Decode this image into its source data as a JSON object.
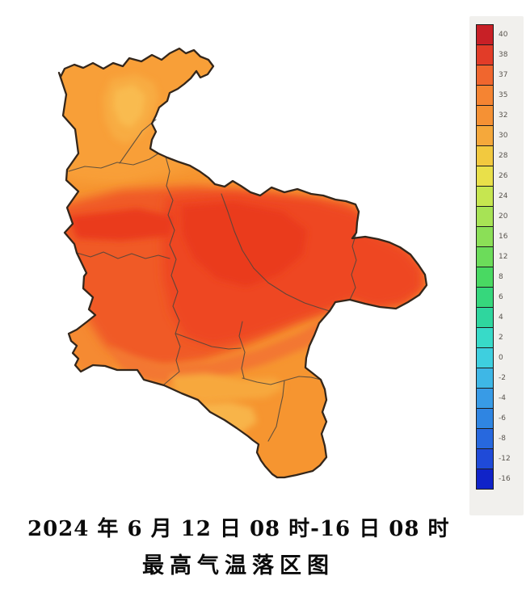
{
  "titles": {
    "period": "2024 年 6 月 12 日 08 时-16 日 08 时",
    "name": "最高气温落区图"
  },
  "legend": {
    "entries": [
      {
        "value": "40",
        "color": "#c82026"
      },
      {
        "value": "38",
        "color": "#e23c28"
      },
      {
        "value": "37",
        "color": "#f0662e"
      },
      {
        "value": "35",
        "color": "#f58432"
      },
      {
        "value": "32",
        "color": "#f59134"
      },
      {
        "value": "30",
        "color": "#f5a83b"
      },
      {
        "value": "28",
        "color": "#f2c93f"
      },
      {
        "value": "26",
        "color": "#e9e04a"
      },
      {
        "value": "24",
        "color": "#c6e650"
      },
      {
        "value": "20",
        "color": "#a7e355"
      },
      {
        "value": "16",
        "color": "#8bdf57"
      },
      {
        "value": "12",
        "color": "#6cdc5a"
      },
      {
        "value": "8",
        "color": "#49d962"
      },
      {
        "value": "6",
        "color": "#36d77c"
      },
      {
        "value": "4",
        "color": "#2fd69e"
      },
      {
        "value": "2",
        "color": "#38dac8"
      },
      {
        "value": "0",
        "color": "#3ecfdf"
      },
      {
        "value": "-2",
        "color": "#3eb7e6"
      },
      {
        "value": "-4",
        "color": "#389be6"
      },
      {
        "value": "-6",
        "color": "#2f85e2"
      },
      {
        "value": "-8",
        "color": "#2768de"
      },
      {
        "value": "-12",
        "color": "#1f4ad8"
      },
      {
        "value": "-16",
        "color": "#1023c8"
      }
    ]
  },
  "map": {
    "colors": {
      "base": "#f69530",
      "north": "#f89f38",
      "north_light": "#f8ac42",
      "north_core": "#f9bb50",
      "arm": "#f58a30",
      "red_big": "#f05a27",
      "red_dark": "#ee4620",
      "red_core": "#ea3a1b",
      "transition": "#f37730",
      "yellow1": "#f7a83d",
      "yellow2": "#f8b449",
      "border": "#33261b",
      "county_line": "#4a443c"
    }
  },
  "chart_data": {
    "type": "heatmap",
    "title": "最高气温落区图",
    "subtitle": "2024年6月12日08时-16日08时",
    "legend_position": "right",
    "legend_values": [
      40,
      38,
      37,
      35,
      32,
      30,
      28,
      26,
      24,
      20,
      16,
      12,
      8,
      6,
      4,
      2,
      0,
      -2,
      -4,
      -6,
      -8,
      -12,
      -16
    ],
    "legend_colors": [
      "#c82026",
      "#e23c28",
      "#f0662e",
      "#f58432",
      "#f59134",
      "#f5a83b",
      "#f2c93f",
      "#e9e04a",
      "#c6e650",
      "#a7e355",
      "#8bdf57",
      "#6cdc5a",
      "#49d962",
      "#36d77c",
      "#2fd69e",
      "#38dac8",
      "#3ecfdf",
      "#3eb7e6",
      "#389be6",
      "#2f85e2",
      "#2768de",
      "#1f4ad8",
      "#1023c8"
    ],
    "observed_zones": [
      {
        "area": "north",
        "approx_value_c": 32
      },
      {
        "area": "north-central light patch",
        "approx_value_c": 30
      },
      {
        "area": "center and northeast",
        "approx_value_c": 38
      },
      {
        "area": "east lobe",
        "approx_value_c": 37
      },
      {
        "area": "southwest arm",
        "approx_value_c": 32
      },
      {
        "area": "south yellow patches",
        "approx_value_c": 30
      },
      {
        "area": "southeast tail",
        "approx_value_c": 32
      }
    ]
  }
}
